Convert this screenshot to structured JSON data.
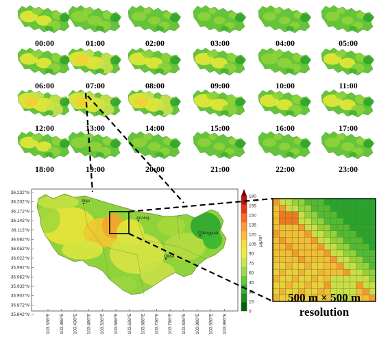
{
  "hourly_panels": [
    "00:00",
    "01:00",
    "02:00",
    "03:00",
    "04:00",
    "05:00",
    "06:00",
    "07:00",
    "08:00",
    "09:00",
    "10:00",
    "11:00",
    "12:00",
    "13:00",
    "14:00",
    "15:00",
    "16:00",
    "17:00",
    "18:00",
    "19:00",
    "20:00",
    "21:00",
    "22:00",
    "23:00"
  ],
  "main_map": {
    "lat_labels": [
      "36.232°N",
      "36.202°N",
      "36.172°N",
      "36.142°N",
      "36.112°N",
      "36.082°N",
      "36.052°N",
      "36.022°N",
      "35.992°N",
      "35.962°N",
      "35.932°N",
      "35.902°N",
      "35.872°N",
      "35.842°N"
    ],
    "lon_labels": [
      "103.336°E",
      "103.386°E",
      "103.436°E",
      "103.486°E",
      "103.536°E",
      "103.586°E",
      "103.636°E",
      "103.686°E",
      "103.736°E",
      "103.786°E",
      "103.836°E",
      "103.886°E",
      "103.936°E",
      "103.986°E"
    ],
    "places": [
      "Xigu",
      "Anning",
      "Chengguan",
      "Qilihe"
    ]
  },
  "colorbar": {
    "ticks": [
      "180",
      "165",
      "150",
      "135",
      "120",
      "105",
      "90",
      "75",
      "60",
      "45",
      "30",
      "15",
      "0"
    ],
    "unit": "μg/m³",
    "colors": [
      "#006400",
      "#1a8f1a",
      "#33b133",
      "#66cc33",
      "#99dd44",
      "#c8e650",
      "#e8ee40",
      "#ffdd33",
      "#ffbb33",
      "#ff9933",
      "#ff6622",
      "#ee3311",
      "#bb1111",
      "#7a0000"
    ]
  },
  "zoom_label": {
    "line1": "500 m × 500 m",
    "line2": "resolution"
  }
}
